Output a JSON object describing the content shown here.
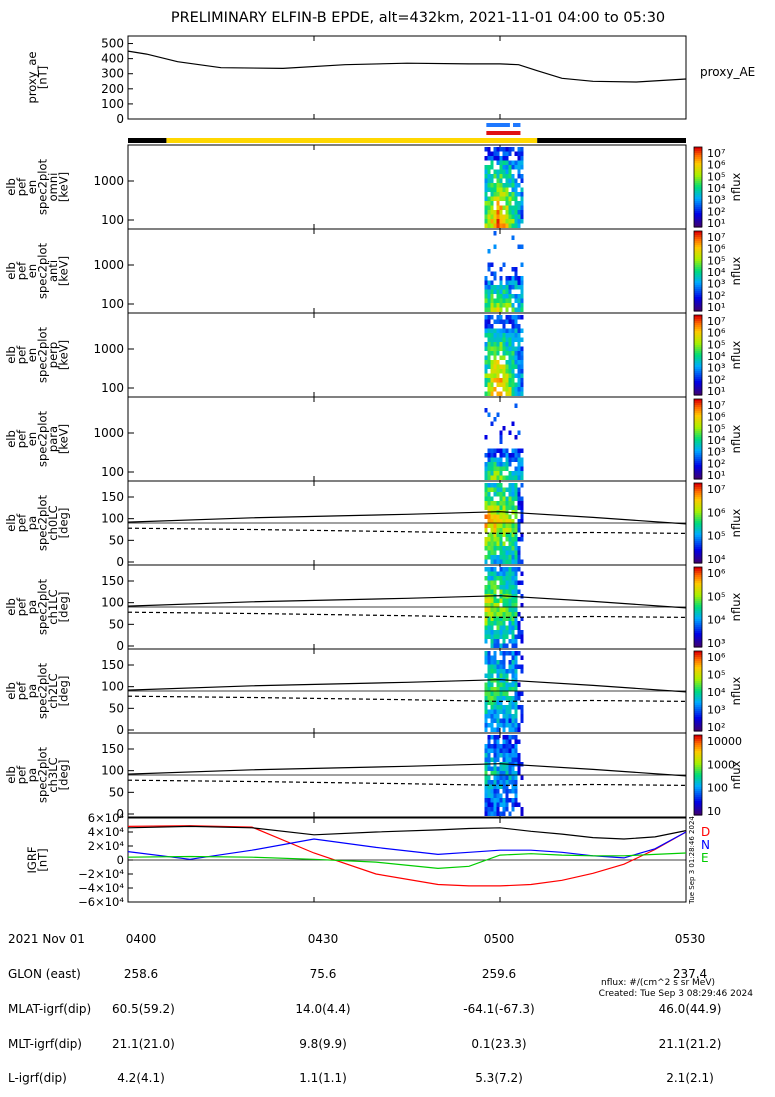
{
  "title": "PRELIMINARY ELFIN-B EPDE, alt=432km, 2021-11-01 04:00 to 05:30",
  "colors": {
    "science_bar": "#ffd700",
    "bar_black": "#000000",
    "ion_band": "#1e78ff",
    "electron_band": "#e01010",
    "igrf_d": "#ff0000",
    "igrf_n": "#0000ff",
    "igrf_e": "#00cc00"
  },
  "time_axis": {
    "ticks": [
      "0400",
      "0430",
      "0500",
      "0530"
    ],
    "start_min": 0,
    "end_min": 90,
    "tick_min": [
      0,
      30,
      60,
      90
    ]
  },
  "spectrogram_activity": {
    "start_min": 57.5,
    "end_min": 63.5
  },
  "panels": {
    "proxy_ae": {
      "ylabel_lines": [
        "proxy_ae",
        "[nT]"
      ],
      "yticks": [
        "500",
        "400",
        "300",
        "200",
        "100",
        "0"
      ],
      "right_label": "proxy_AE"
    },
    "spectra": [
      {
        "ylabel_lines": [
          "elb",
          "pef",
          "en",
          "spec2plot",
          "omni",
          "[keV]"
        ],
        "yticks": [
          "1000",
          "100"
        ],
        "cbar_ticks": [
          "10⁷",
          "10⁶",
          "10⁵",
          "10⁴",
          "10³",
          "10²",
          "10¹"
        ],
        "cbar_label": "nflux"
      },
      {
        "ylabel_lines": [
          "elb",
          "pef",
          "en",
          "spec2plot",
          "anti",
          "[keV]"
        ],
        "yticks": [
          "1000",
          "100"
        ],
        "cbar_ticks": [
          "10⁷",
          "10⁶",
          "10⁵",
          "10⁴",
          "10³",
          "10²",
          "10¹"
        ],
        "cbar_label": "nflux"
      },
      {
        "ylabel_lines": [
          "elb",
          "pef",
          "en",
          "spec2plot",
          "perp",
          "[keV]"
        ],
        "yticks": [
          "1000",
          "100"
        ],
        "cbar_ticks": [
          "10⁷",
          "10⁶",
          "10⁵",
          "10⁴",
          "10³",
          "10²",
          "10¹"
        ],
        "cbar_label": "nflux"
      },
      {
        "ylabel_lines": [
          "elb",
          "pef",
          "en",
          "spec2plot",
          "para",
          "[keV]"
        ],
        "yticks": [
          "1000",
          "100"
        ],
        "cbar_ticks": [
          "10⁷",
          "10⁶",
          "10⁵",
          "10⁴",
          "10³",
          "10²",
          "10¹"
        ],
        "cbar_label": "nflux"
      }
    ],
    "pitch": [
      {
        "ylabel_lines": [
          "elb",
          "pef",
          "pa",
          "spec2plot",
          "ch0LC",
          "[deg]"
        ],
        "yticks": [
          "150",
          "100",
          "50",
          "0"
        ],
        "cbar_ticks": [
          "10⁷",
          "10⁶",
          "10⁵",
          "10⁴"
        ],
        "cbar_label": "nflux"
      },
      {
        "ylabel_lines": [
          "elb",
          "pef",
          "pa",
          "spec2plot",
          "ch1LC",
          "[deg]"
        ],
        "yticks": [
          "150",
          "100",
          "50",
          "0"
        ],
        "cbar_ticks": [
          "10⁶",
          "10⁵",
          "10⁴",
          "10³"
        ],
        "cbar_label": "nflux"
      },
      {
        "ylabel_lines": [
          "elb",
          "pef",
          "pa",
          "spec2plot",
          "ch2LC",
          "[deg]"
        ],
        "yticks": [
          "150",
          "100",
          "50",
          "0"
        ],
        "cbar_ticks": [
          "10⁶",
          "10⁵",
          "10⁴",
          "10³",
          "10²"
        ],
        "cbar_label": "nflux"
      },
      {
        "ylabel_lines": [
          "elb",
          "pef",
          "pa",
          "spec2plot",
          "ch3LC",
          "[deg]"
        ],
        "yticks": [
          "150",
          "100",
          "50",
          "0"
        ],
        "cbar_ticks": [
          "10000",
          "1000",
          "100",
          "10"
        ],
        "cbar_label": "nflux"
      }
    ],
    "igrf": {
      "ylabel_lines": [
        "IGRF",
        "[nT]"
      ],
      "yticks": [
        "6×10⁴",
        "4×10⁴",
        "2×10⁴",
        "0",
        "−2×10⁴",
        "−4×10⁴",
        "−6×10⁴"
      ],
      "legend": [
        "D",
        "N",
        "E"
      ],
      "side_stamp": "Tue Sep  3 01:28:46 2024"
    }
  },
  "footer": {
    "row_labels": [
      "2021 Nov 01",
      "GLON (east)",
      "MLAT-igrf(dip)",
      "MLT-igrf(dip)",
      "L-igrf(dip)"
    ],
    "columns": [
      [
        "0400",
        "258.6",
        "60.5(59.2)",
        "21.1(21.0)",
        "4.2(4.1)"
      ],
      [
        "0430",
        "75.6",
        "14.0(4.4)",
        "9.8(9.9)",
        "1.1(1.1)"
      ],
      [
        "0500",
        "259.6",
        "-64.1(-67.3)",
        "0.1(23.3)",
        "5.3(7.2)"
      ],
      [
        "0530",
        "237.4",
        "46.0(44.9)",
        "21.1(21.2)",
        "2.1(2.1)"
      ]
    ],
    "units_note": "nflux: #/(cm^2 s sr MeV)",
    "created": "Created: Tue Sep  3 08:29:46 2024"
  },
  "chart_data": [
    {
      "type": "line",
      "name": "proxy_ae",
      "x_unit": "minutes after 04:00",
      "x": [
        0,
        3,
        8,
        15,
        25,
        35,
        45,
        55,
        60,
        63,
        66,
        70,
        75,
        82,
        90
      ],
      "series": [
        {
          "name": "proxy_AE",
          "values": [
            450,
            430,
            380,
            340,
            335,
            360,
            370,
            365,
            365,
            360,
            320,
            270,
            250,
            245,
            265
          ]
        }
      ],
      "ylim": [
        0,
        550
      ]
    },
    {
      "type": "line",
      "name": "igrf",
      "x_unit": "minutes after 04:00",
      "x": [
        0,
        10,
        20,
        30,
        40,
        50,
        55,
        60,
        65,
        70,
        75,
        80,
        85,
        90
      ],
      "series": [
        {
          "name": "D",
          "values": [
            48000,
            49000,
            47000,
            10000,
            -20000,
            -35000,
            -37000,
            -37000,
            -35000,
            -29000,
            -19000,
            -6000,
            15000,
            40000
          ]
        },
        {
          "name": "N",
          "values": [
            12000,
            1000,
            14000,
            30000,
            18000,
            8000,
            11000,
            14000,
            14000,
            11000,
            6000,
            3000,
            16000,
            40000
          ]
        },
        {
          "name": "E",
          "values": [
            4000,
            5000,
            4000,
            1000,
            -3000,
            -12000,
            -9000,
            7000,
            9000,
            7000,
            6000,
            6000,
            8000,
            10000
          ]
        },
        {
          "name": "total",
          "values": [
            46000,
            48000,
            46000,
            36000,
            40000,
            43000,
            45000,
            46000,
            41000,
            37000,
            32000,
            30000,
            33000,
            42000
          ]
        }
      ],
      "ylim": [
        -60000,
        60000
      ]
    },
    {
      "type": "line",
      "name": "loss_cone",
      "x_unit": "minutes after 04:00",
      "x": [
        0,
        20,
        45,
        60,
        75,
        90
      ],
      "series": [
        {
          "name": "solid",
          "values": [
            92,
            102,
            110,
            116,
            103,
            88
          ]
        },
        {
          "name": "dashed",
          "values": [
            78,
            75,
            70,
            66,
            68,
            66
          ]
        }
      ],
      "ylim": [
        0,
        180
      ]
    }
  ]
}
